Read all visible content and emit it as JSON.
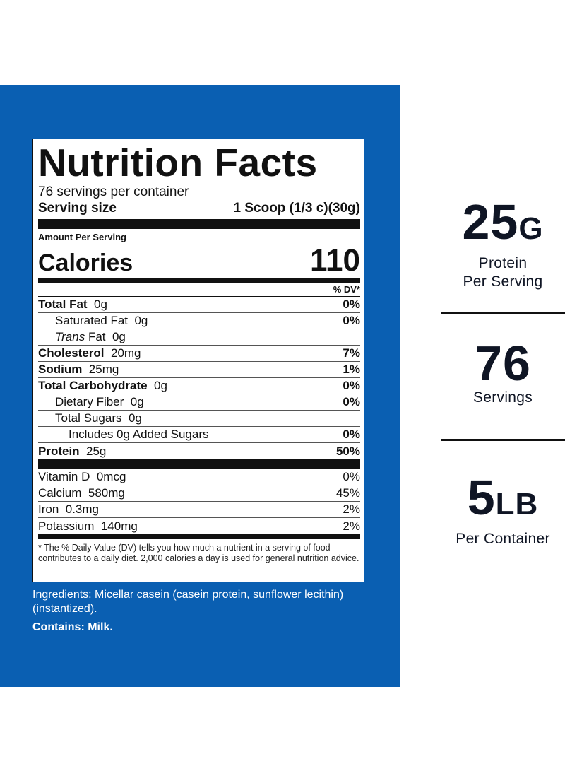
{
  "label": {
    "title": "Nutrition Facts",
    "servings_per_container": "76 servings per container",
    "serving_size_label": "Serving size",
    "serving_size_value": "1 Scoop (1/3 c)(30g)",
    "amount_per_serving": "Amount Per Serving",
    "calories_label": "Calories",
    "calories_value": "110",
    "dv_header": "% DV*",
    "nutrients": [
      {
        "name": "Total Fat",
        "amount": "0g",
        "dv": "0%"
      },
      {
        "name": "Saturated Fat",
        "amount": "0g",
        "dv": "0%"
      },
      {
        "name_italic": "Trans",
        "name": "Fat",
        "amount": "0g",
        "dv": ""
      },
      {
        "name": "Cholesterol",
        "amount": "20mg",
        "dv": "7%"
      },
      {
        "name": "Sodium",
        "amount": "25mg",
        "dv": "1%"
      },
      {
        "name": "Total Carbohydrate",
        "amount": "0g",
        "dv": "0%"
      },
      {
        "name": "Dietary Fiber",
        "amount": "0g",
        "dv": "0%"
      },
      {
        "name": "Total Sugars",
        "amount": "0g",
        "dv": ""
      },
      {
        "name": "Includes 0g Added Sugars",
        "amount": "",
        "dv": "0%"
      },
      {
        "name": "Protein",
        "amount": "25g",
        "dv": "50%"
      }
    ],
    "vitamins": [
      {
        "name": "Vitamin D",
        "amount": "0mcg",
        "dv": "0%"
      },
      {
        "name": "Calcium",
        "amount": "580mg",
        "dv": "45%"
      },
      {
        "name": "Iron",
        "amount": "0.3mg",
        "dv": "2%"
      },
      {
        "name": "Potassium",
        "amount": "140mg",
        "dv": "2%"
      }
    ],
    "footnote": "* The % Daily Value (DV) tells you how much a nutrient in a serving of food contributes to a daily diet. 2,000 calories a day is used for general nutrition advice."
  },
  "ingredients": "Ingredients: Micellar casein (casein protein, sunflower lecithin) (instantized).",
  "contains": "Contains: Milk.",
  "stats": [
    {
      "big": "25",
      "unit": "G",
      "sub1": "Protein",
      "sub2": "Per Serving"
    },
    {
      "big": "76",
      "unit": "",
      "sub1": "Servings",
      "sub2": ""
    },
    {
      "big": "5",
      "unit": "LB",
      "sub1": "Per Container",
      "sub2": ""
    }
  ],
  "colors": {
    "panel_blue": "#0a5fb2",
    "text_dark": "#0f1524"
  }
}
